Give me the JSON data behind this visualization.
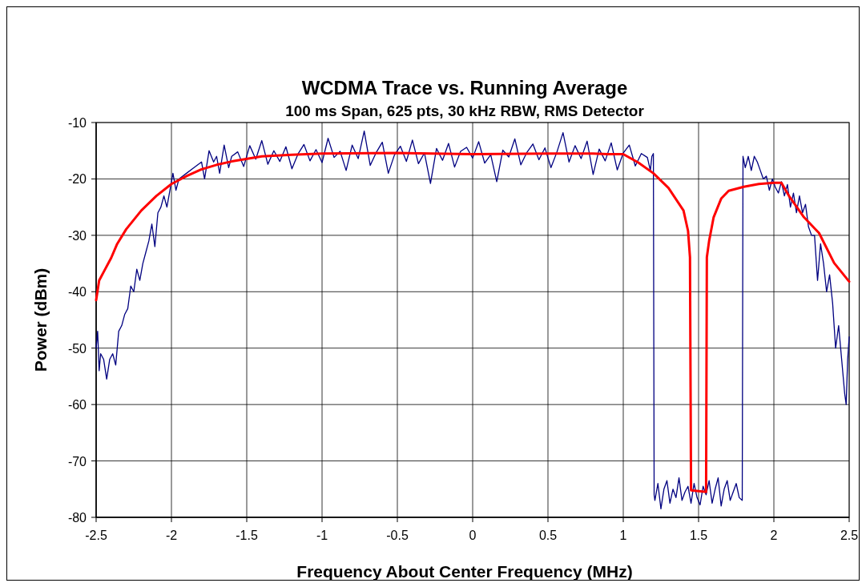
{
  "chart_data": {
    "type": "line",
    "title": "WCDMA Trace vs. Running Average",
    "subtitle": "100 ms Span, 625 pts, 30 kHz RBW, RMS Detector",
    "xlabel": "Frequency About Center Frequency (MHz)",
    "ylabel": "Power (dBm)",
    "xlim": [
      -2.5,
      2.5
    ],
    "xticks": [
      -2.5,
      -2,
      -1.5,
      -1,
      -0.5,
      0,
      0.5,
      1,
      1.5,
      2,
      2.5
    ],
    "ylim": [
      -80,
      -10
    ],
    "yticks": [
      -80,
      -70,
      -60,
      -50,
      -40,
      -30,
      -20,
      -10
    ],
    "grid": true,
    "marker": "none",
    "line_style": "solid",
    "series": [
      {
        "color": "#000080",
        "x": [
          -2.5,
          -2.49,
          -2.48,
          -2.47,
          -2.45,
          -2.43,
          -2.41,
          -2.39,
          -2.37,
          -2.35,
          -2.33,
          -2.31,
          -2.29,
          -2.27,
          -2.25,
          -2.23,
          -2.21,
          -2.19,
          -2.17,
          -2.15,
          -2.13,
          -2.11,
          -2.09,
          -2.07,
          -2.05,
          -2.03,
          -2.01,
          -1.99,
          -1.97,
          -1.95,
          -1.9,
          -1.85,
          -1.8,
          -1.78,
          -1.75,
          -1.72,
          -1.7,
          -1.68,
          -1.65,
          -1.62,
          -1.6,
          -1.56,
          -1.52,
          -1.48,
          -1.44,
          -1.4,
          -1.36,
          -1.32,
          -1.28,
          -1.24,
          -1.2,
          -1.16,
          -1.12,
          -1.08,
          -1.04,
          -1,
          -0.96,
          -0.92,
          -0.88,
          -0.84,
          -0.8,
          -0.76,
          -0.72,
          -0.68,
          -0.64,
          -0.6,
          -0.56,
          -0.52,
          -0.48,
          -0.44,
          -0.4,
          -0.36,
          -0.32,
          -0.28,
          -0.24,
          -0.2,
          -0.16,
          -0.12,
          -0.08,
          -0.04,
          0,
          0.04,
          0.08,
          0.12,
          0.16,
          0.2,
          0.24,
          0.28,
          0.32,
          0.36,
          0.4,
          0.44,
          0.48,
          0.52,
          0.56,
          0.6,
          0.64,
          0.68,
          0.72,
          0.76,
          0.8,
          0.84,
          0.88,
          0.92,
          0.96,
          1,
          1.04,
          1.08,
          1.12,
          1.16,
          1.18,
          1.19,
          1.2,
          1.205,
          1.21,
          1.23,
          1.25,
          1.27,
          1.29,
          1.31,
          1.33,
          1.35,
          1.37,
          1.39,
          1.41,
          1.43,
          1.45,
          1.47,
          1.49,
          1.51,
          1.53,
          1.55,
          1.57,
          1.59,
          1.61,
          1.63,
          1.65,
          1.67,
          1.69,
          1.71,
          1.73,
          1.75,
          1.77,
          1.79,
          1.795,
          1.81,
          1.83,
          1.85,
          1.87,
          1.89,
          1.91,
          1.93,
          1.95,
          1.97,
          1.99,
          2.01,
          2.03,
          2.05,
          2.07,
          2.09,
          2.11,
          2.13,
          2.15,
          2.17,
          2.19,
          2.21,
          2.23,
          2.25,
          2.27,
          2.29,
          2.31,
          2.33,
          2.35,
          2.37,
          2.39,
          2.41,
          2.43,
          2.45,
          2.47,
          2.48,
          2.49,
          2.5
        ],
        "values": [
          -50,
          -47,
          -54,
          -51,
          -52,
          -55.5,
          -52,
          -51,
          -53,
          -47,
          -46,
          -44,
          -43,
          -39,
          -40,
          -36,
          -38,
          -35,
          -33,
          -31,
          -28,
          -32,
          -26,
          -25,
          -23,
          -25,
          -22,
          -19,
          -22,
          -20,
          -19,
          -18,
          -17,
          -20,
          -15,
          -17,
          -16,
          -19,
          -14,
          -18,
          -16,
          -15.2,
          -17.8,
          -14.1,
          -16.5,
          -13.2,
          -17.4,
          -15.0,
          -16.9,
          -14.3,
          -18.2,
          -15.6,
          -13.9,
          -16.8,
          -14.8,
          -17.1,
          -12.8,
          -16.2,
          -15.1,
          -18.5,
          -14.0,
          -16.4,
          -11.5,
          -17.6,
          -15.3,
          -13.5,
          -19.0,
          -15.8,
          -14.2,
          -16.9,
          -13.1,
          -17.3,
          -15.4,
          -20.8,
          -14.6,
          -16.7,
          -13.7,
          -17.9,
          -15.1,
          -14.4,
          -16.3,
          -13.4,
          -17.2,
          -15.7,
          -20.5,
          -14.9,
          -16.1,
          -12.9,
          -17.5,
          -15.3,
          -13.8,
          -16.6,
          -14.5,
          -18.0,
          -15.2,
          -11.8,
          -17.0,
          -14.1,
          -16.4,
          -13.3,
          -19.2,
          -14.7,
          -16.8,
          -13.6,
          -18.4,
          -15.4,
          -14.0,
          -17.7,
          -15.5,
          -16.2,
          -18.5,
          -16,
          -15.5,
          -76,
          -77,
          -74,
          -78.5,
          -75,
          -73.5,
          -77.5,
          -75,
          -76.5,
          -73,
          -77,
          -75.5,
          -74.5,
          -77.5,
          -74,
          -76.5,
          -77.8,
          -74.5,
          -76,
          -73.5,
          -77.5,
          -75,
          -73,
          -78,
          -75,
          -73.5,
          -77,
          -75.5,
          -74,
          -76.5,
          -77,
          -16,
          -18,
          -16,
          -18.5,
          -16,
          -17,
          -18.5,
          -20,
          -19.5,
          -22,
          -20,
          -21.5,
          -22.5,
          -20.5,
          -23,
          -21,
          -25,
          -22.5,
          -26,
          -23,
          -26,
          -24.5,
          -28.5,
          -30,
          -30,
          -38,
          -31.5,
          -35,
          -40,
          -37,
          -42,
          -50,
          -46,
          -52,
          -58,
          -60,
          -52,
          -48
        ]
      },
      {
        "color": "#ff0000",
        "x": [
          -2.5,
          -2.48,
          -2.45,
          -2.4,
          -2.36,
          -2.3,
          -2.2,
          -2.1,
          -2,
          -1.9,
          -1.8,
          -1.7,
          -1.6,
          -1.4,
          -1.2,
          -1,
          -0.5,
          0,
          0.5,
          0.8,
          0.9,
          1,
          1.1,
          1.2,
          1.3,
          1.4,
          1.43,
          1.443,
          1.45,
          1.55,
          1.555,
          1.57,
          1.6,
          1.65,
          1.7,
          1.8,
          1.9,
          2,
          2.05,
          2.1,
          2.2,
          2.3,
          2.4,
          2.5
        ],
        "values": [
          -41.5,
          -38,
          -36.5,
          -34,
          -31.5,
          -28.9,
          -25.6,
          -23,
          -20.9,
          -19.5,
          -18.3,
          -17.5,
          -16.9,
          -16,
          -15.7,
          -15.5,
          -15.4,
          -15.6,
          -15.5,
          -15.5,
          -15.6,
          -15.6,
          -17.1,
          -19,
          -21.6,
          -25.6,
          -29.2,
          -33.9,
          -75.2,
          -75.5,
          -33.9,
          -31,
          -26.8,
          -23.5,
          -22.1,
          -21.4,
          -20.9,
          -20.7,
          -20.7,
          -23,
          -26.8,
          -29.6,
          -34.9,
          -38.2
        ]
      }
    ]
  }
}
